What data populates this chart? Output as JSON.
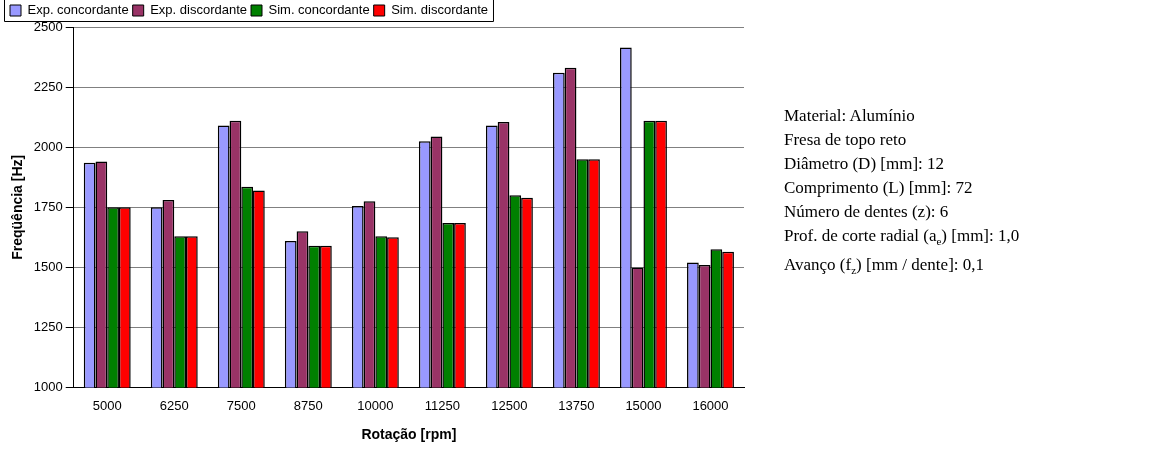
{
  "chart_data": {
    "type": "bar",
    "xlabel": "Rotação [rpm]",
    "ylabel": "Freqüência [Hz]",
    "categories": [
      "5000",
      "6250",
      "7500",
      "8750",
      "10000",
      "11250",
      "12500",
      "13750",
      "15000",
      "16000"
    ],
    "series": [
      {
        "name": "Exp. concordante",
        "color": "#9999ff",
        "values": [
          1935,
          1750,
          2090,
          1610,
          1755,
          2025,
          2090,
          2310,
          2415,
          1520
        ]
      },
      {
        "name": "Exp. discordante",
        "color": "#993366",
        "values": [
          1940,
          1780,
          2110,
          1650,
          1775,
          2045,
          2105,
          2330,
          1500,
          1510
        ]
      },
      {
        "name": "Sim. concordante",
        "color": "#008000",
        "values": [
          1750,
          1630,
          1835,
          1590,
          1630,
          1685,
          1800,
          1950,
          2110,
          1575
        ]
      },
      {
        "name": "Sim. discordante",
        "color": "#ff0000",
        "values": [
          1750,
          1630,
          1820,
          1590,
          1625,
          1685,
          1790,
          1950,
          2110,
          1565
        ]
      }
    ],
    "ylim": [
      1000,
      2500
    ],
    "yticks": [
      1000,
      1250,
      1500,
      1750,
      2000,
      2250,
      2500
    ],
    "grid": "y",
    "legend": "top left",
    "annotations": [
      "Material: Alumínio",
      "Fresa de topo reto",
      "Diâmetro (D) [mm]: 12",
      "Comprimento (L) [mm]: 72",
      "Número de dentes (z): 6",
      "Prof. de corte radial (a$_{e}$) [mm]: 1,0",
      "Avanço (f$_{z}$) [mm / dente]: 0,1"
    ]
  }
}
